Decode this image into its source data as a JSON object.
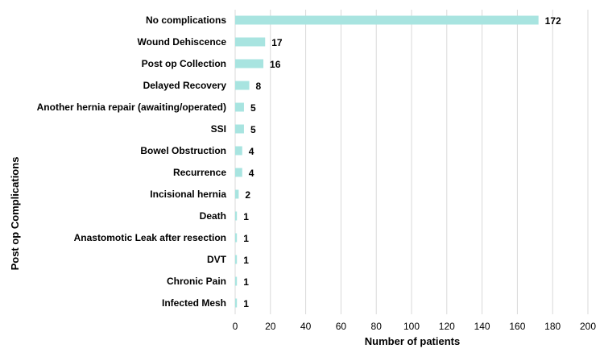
{
  "chart_data": {
    "type": "bar",
    "orientation": "horizontal",
    "categories": [
      "No complications",
      "Wound Dehiscence",
      "Post op Collection",
      "Delayed Recovery",
      "Another hernia repair (awaiting/operated)",
      "SSI",
      "Bowel Obstruction",
      "Recurrence",
      "Incisional hernia",
      "Death",
      "Anastomotic Leak after resection",
      "DVT",
      "Chronic Pain",
      "Infected Mesh"
    ],
    "values": [
      172,
      17,
      16,
      8,
      5,
      5,
      4,
      4,
      2,
      1,
      1,
      1,
      1,
      1
    ],
    "data_labels": [
      "172",
      "17",
      "16",
      "8",
      "5",
      "5",
      "4",
      "4",
      "2",
      "1",
      "1",
      "1",
      "1",
      "1"
    ],
    "xlabel": "Number of patients",
    "ylabel": "Post op Complications",
    "xlim": [
      0,
      200
    ],
    "xticks": [
      "0",
      "20",
      "40",
      "60",
      "80",
      "100",
      "120",
      "140",
      "160",
      "180",
      "200"
    ],
    "grid": "vertical",
    "legend": "none",
    "bar_color": "#a8e4e0"
  }
}
